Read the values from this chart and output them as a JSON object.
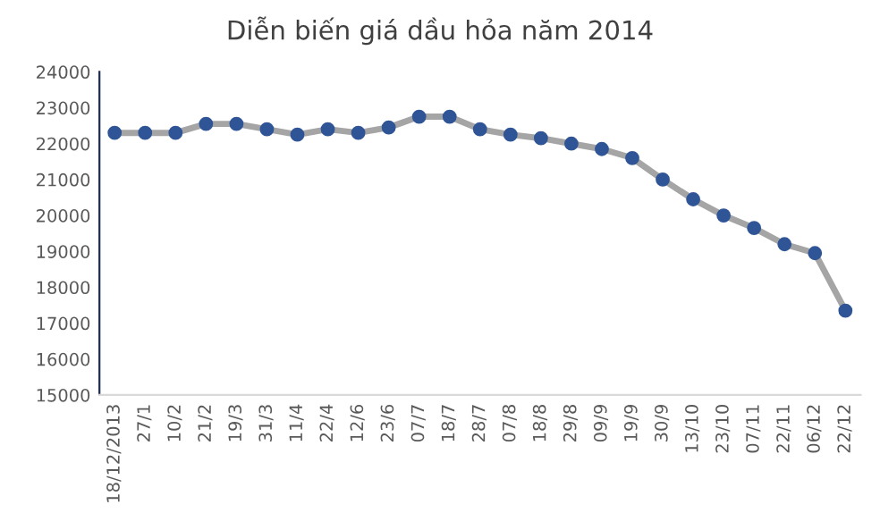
{
  "chart_data": {
    "type": "line",
    "title": "Diễn biến giá dầu hỏa năm 2014",
    "categories": [
      "18/12/2013",
      "27/1",
      "10/2",
      "21/2",
      "19/3",
      "31/3",
      "11/4",
      "22/4",
      "12/6",
      "23/6",
      "07/7",
      "18/7",
      "28/7",
      "07/8",
      "18/8",
      "29/8",
      "09/9",
      "19/9",
      "30/9",
      "13/10",
      "23/10",
      "07/11",
      "22/11",
      "06/12",
      "22/12"
    ],
    "series": [
      {
        "color": "#a5a5a5",
        "colors": [
          "#2f5597",
          "#2f5597",
          "#2f5597",
          "#2f5597",
          "#2f5597",
          "#2f5597",
          "#2f5597",
          "#2f5597",
          "#2f5597",
          "#2f5597",
          "#2f5597",
          "#2f5597",
          "#2f5597",
          "#2f5597",
          "#2f5597",
          "#2f5597",
          "#2f5597",
          "#2f5597",
          "#2f5597",
          "#2f5597",
          "#2f5597",
          "#2f5597",
          "#2f5597",
          "#2f5597",
          "#2f5597"
        ],
        "values": [
          22300,
          22300,
          22300,
          22550,
          22550,
          22400,
          22250,
          22400,
          22300,
          22450,
          22750,
          22750,
          22400,
          22250,
          22150,
          22000,
          21850,
          21600,
          21000,
          20450,
          20000,
          19650,
          19200,
          18950,
          17350
        ]
      }
    ],
    "ylim": [
      15000,
      24000
    ],
    "yticks": [
      15000,
      16000,
      17000,
      18000,
      19000,
      20000,
      21000,
      22000,
      23000,
      24000
    ],
    "grid": false,
    "legend": false,
    "marker": "circle",
    "line_style": "solid"
  }
}
